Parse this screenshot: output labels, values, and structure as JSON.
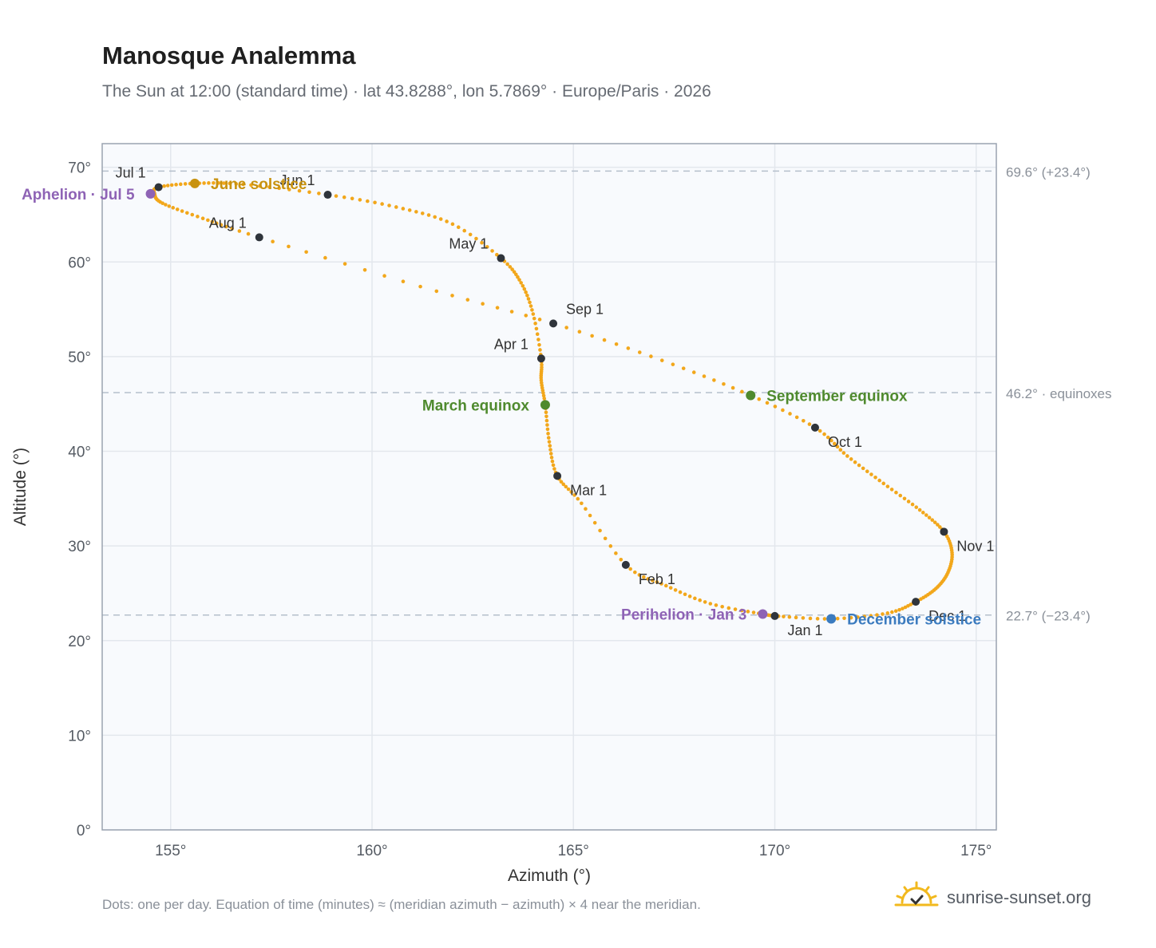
{
  "page": {
    "title": "Manosque Analemma",
    "subtitle": "The Sun at 12:00 (standard time) · lat 43.8288°, lon 5.7869° · Europe/Paris · 2026",
    "footnote": "Dots: one per day. Equation of time (minutes) ≈ (meridian azimuth − azimuth) × 4 near the meridian.",
    "brand": "sunrise-sunset.org"
  },
  "chart_data": {
    "type": "scatter",
    "xlabel": "Azimuth (°)",
    "ylabel": "Altitude (°)",
    "xlim": [
      153.3,
      175.5
    ],
    "ylim": [
      0,
      72.5
    ],
    "xticks": [
      155,
      160,
      165,
      170,
      175
    ],
    "yticks": [
      0,
      10,
      20,
      30,
      40,
      50,
      60,
      70
    ],
    "tick_suffix": "°",
    "grid": true,
    "series": [
      {
        "color": "#f2a71b",
        "points": [
          [
            170.0,
            22.6
          ],
          [
            171.4,
            22.3
          ],
          [
            172.8,
            22.9
          ],
          [
            173.5,
            24.1
          ],
          [
            174.0,
            25.5
          ],
          [
            174.3,
            27.2
          ],
          [
            174.4,
            29.3
          ],
          [
            174.2,
            31.5
          ],
          [
            173.6,
            33.8
          ],
          [
            172.7,
            36.6
          ],
          [
            171.8,
            39.5
          ],
          [
            171.0,
            42.5
          ],
          [
            169.4,
            45.9
          ],
          [
            167.2,
            49.6
          ],
          [
            164.5,
            53.5
          ],
          [
            161.2,
            57.4
          ],
          [
            157.2,
            62.6
          ],
          [
            155.8,
            64.6
          ],
          [
            154.8,
            66.2
          ],
          [
            154.6,
            67.2
          ],
          [
            154.7,
            67.9
          ],
          [
            155.6,
            68.3
          ],
          [
            156.8,
            68.2
          ],
          [
            158.9,
            67.1
          ],
          [
            160.6,
            65.8
          ],
          [
            162.0,
            64.0
          ],
          [
            163.2,
            60.4
          ],
          [
            163.7,
            57.8
          ],
          [
            164.0,
            54.5
          ],
          [
            164.2,
            49.8
          ],
          [
            164.2,
            47.5
          ],
          [
            164.3,
            44.9
          ],
          [
            164.4,
            41.0
          ],
          [
            164.6,
            37.4
          ],
          [
            165.2,
            34.5
          ],
          [
            166.3,
            28.0
          ],
          [
            167.3,
            25.8
          ],
          [
            168.4,
            23.9
          ],
          [
            169.7,
            22.8
          ],
          [
            170.0,
            22.6
          ]
        ]
      }
    ],
    "reference_lines": [
      {
        "y": 69.6,
        "label": "69.6° (+23.4°)"
      },
      {
        "y": 46.2,
        "label": "46.2° · equinoxes"
      },
      {
        "y": 22.7,
        "label": "22.7° (−23.4°)"
      }
    ],
    "month_markers": [
      {
        "label": "Jan 1",
        "x": 170.0,
        "y": 22.6,
        "pos": "below-right"
      },
      {
        "label": "Feb 1",
        "x": 166.3,
        "y": 28.0,
        "pos": "below-right"
      },
      {
        "label": "Mar 1",
        "x": 164.6,
        "y": 37.4,
        "pos": "below-right"
      },
      {
        "label": "Apr 1",
        "x": 164.2,
        "y": 49.8,
        "pos": "above-left"
      },
      {
        "label": "May 1",
        "x": 163.2,
        "y": 60.4,
        "pos": "above-left"
      },
      {
        "label": "Jun 1",
        "x": 158.9,
        "y": 67.1,
        "pos": "above-left"
      },
      {
        "label": "Jul 1",
        "x": 154.7,
        "y": 67.9,
        "pos": "above-left"
      },
      {
        "label": "Aug 1",
        "x": 157.2,
        "y": 62.6,
        "pos": "above-left"
      },
      {
        "label": "Sep 1",
        "x": 164.5,
        "y": 53.5,
        "pos": "above-right"
      },
      {
        "label": "Oct 1",
        "x": 171.0,
        "y": 42.5,
        "pos": "below-right"
      },
      {
        "label": "Nov 1",
        "x": 174.2,
        "y": 31.5,
        "pos": "below-right"
      },
      {
        "label": "Dec 1",
        "x": 173.5,
        "y": 24.1,
        "pos": "below-right"
      }
    ],
    "events": [
      {
        "label": "June solstice",
        "x": 155.6,
        "y": 68.3,
        "color": "#c8920f",
        "pos": "right"
      },
      {
        "label": "Aphelion · Jul 5",
        "x": 154.5,
        "y": 67.2,
        "color": "#8e63b5",
        "pos": "left"
      },
      {
        "label": "March equinox",
        "x": 164.3,
        "y": 44.9,
        "color": "#4f8a2e",
        "pos": "left"
      },
      {
        "label": "September equinox",
        "x": 169.4,
        "y": 45.9,
        "color": "#4f8a2e",
        "pos": "right"
      },
      {
        "label": "Perihelion · Jan 3",
        "x": 169.7,
        "y": 22.8,
        "color": "#8e63b5",
        "pos": "left"
      },
      {
        "label": "December solstice",
        "x": 171.4,
        "y": 22.3,
        "color": "#3b7bbf",
        "pos": "right"
      }
    ]
  }
}
